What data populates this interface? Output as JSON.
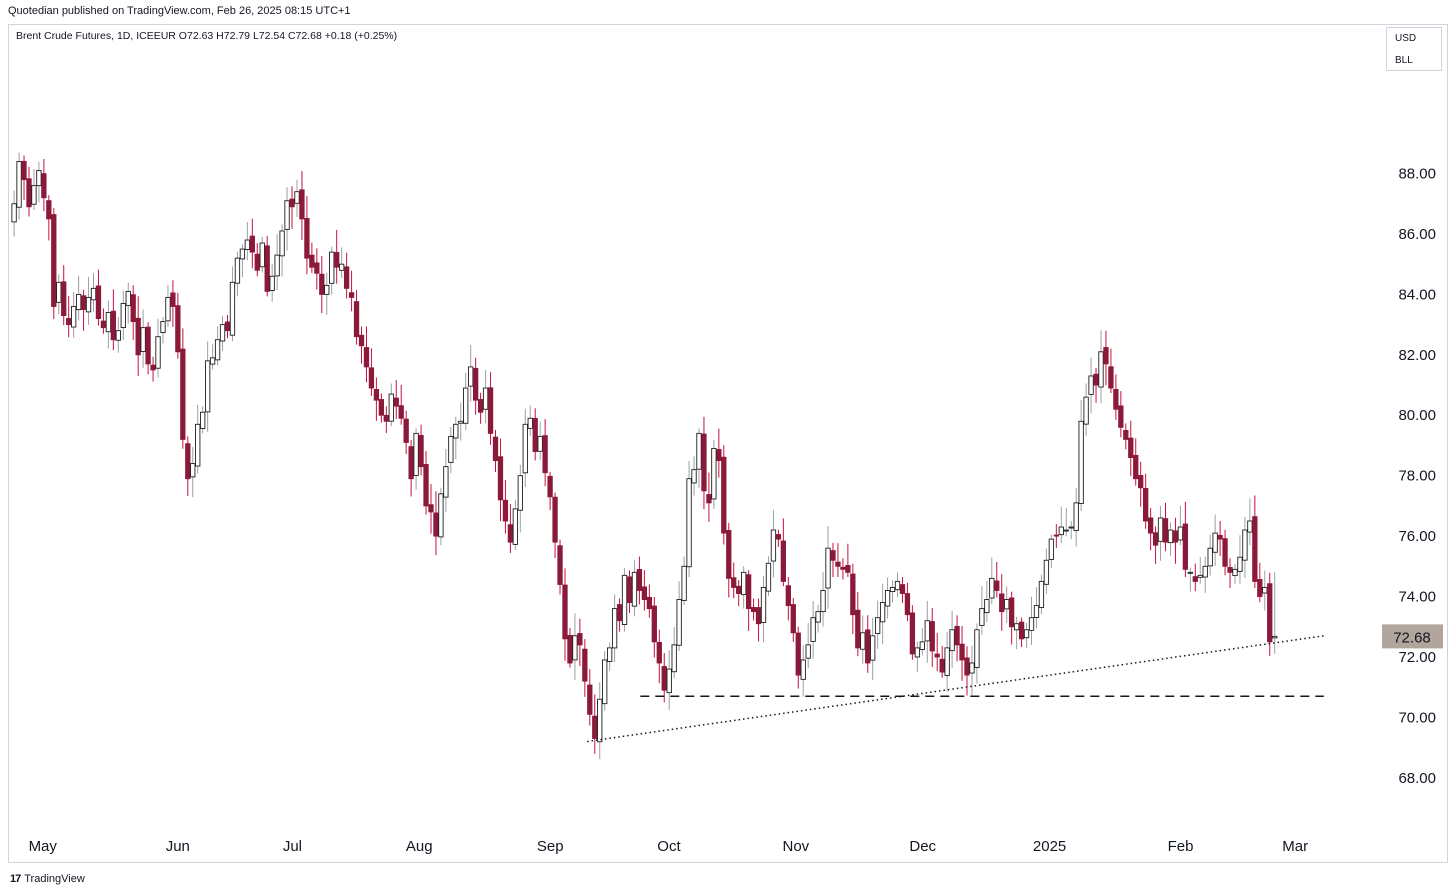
{
  "header": {
    "publisher_line": "Quotedian published on TradingView.com, Feb 26, 2025 08:15 UTC+1",
    "symbol_line": "Brent Crude Futures, 1D, ICEEUR  O72.63  H72.79  L72.54  C72.68  +0.18 (+0.25%)"
  },
  "unit_box": {
    "currency": "USD",
    "unit": "BLL"
  },
  "footer": {
    "brand": "TradingView",
    "logo_glyph": "17"
  },
  "colors": {
    "up": "#ffffff",
    "down": "#8b1a3a",
    "wick_down": "#c8103e",
    "wick_up": "#9aa0a6",
    "price_label_bg": "#b2a59b"
  },
  "chart_data": {
    "type": "candlestick",
    "title": "Brent Crude Futures",
    "interval": "1D",
    "exchange": "ICEEUR",
    "last": {
      "open": 72.63,
      "high": 72.79,
      "low": 72.54,
      "close": 72.68,
      "change": "+0.18 (+0.25%)"
    },
    "last_price_label": "72.68",
    "y_axis": {
      "ticks": [
        "88.00",
        "86.00",
        "84.00",
        "82.00",
        "80.00",
        "78.00",
        "76.00",
        "74.00",
        "72.00",
        "70.00",
        "68.00"
      ],
      "ylim": [
        67.0,
        90.6
      ],
      "position": "right"
    },
    "x_axis": {
      "labels": [
        "May",
        "Jun",
        "Jul",
        "Aug",
        "Sep",
        "Oct",
        "Nov",
        "Dec",
        "2025",
        "Feb",
        "Mar"
      ],
      "label_dates": [
        "2024-05-01",
        "2024-06-03",
        "2024-07-01",
        "2024-08-01",
        "2024-09-02",
        "2024-10-01",
        "2024-11-01",
        "2024-12-02",
        "2025-01-02",
        "2025-02-03",
        "2025-03-03"
      ],
      "xlim": [
        "2024-04-23",
        "2025-03-12"
      ]
    },
    "series": [
      {
        "name": "Brent Crude Futures",
        "closes": [
          87.0,
          88.4,
          87.8,
          86.9,
          87.6,
          88.1,
          87.2,
          86.5,
          83.6,
          84.4,
          83.3,
          83.0,
          83.6,
          84.0,
          83.5,
          83.9,
          84.2,
          83.2,
          82.9,
          83.4,
          82.5,
          82.8,
          83.7,
          84.1,
          83.1,
          82.0,
          82.9,
          81.7,
          81.5,
          82.6,
          83.1,
          83.9,
          83.6,
          82.1,
          79.2,
          77.9,
          78.4,
          79.7,
          80.1,
          81.8,
          81.9,
          82.5,
          83.0,
          82.8,
          84.4,
          85.2,
          85.5,
          85.8,
          85.4,
          84.8,
          85.7,
          84.1,
          84.6,
          85.3,
          86.1,
          87.1,
          86.9,
          87.4,
          86.5,
          85.2,
          84.9,
          84.7,
          84.0,
          84.3,
          85.4,
          84.9,
          85.0,
          84.2,
          83.9,
          82.6,
          82.3,
          81.6,
          80.9,
          80.5,
          80.0,
          79.8,
          80.7,
          80.3,
          79.9,
          79.1,
          77.9,
          79.4,
          78.3,
          77.0,
          76.8,
          76.0,
          77.4,
          78.3,
          79.3,
          79.7,
          79.8,
          80.9,
          81.6,
          80.5,
          80.1,
          80.9,
          79.4,
          78.5,
          77.2,
          76.5,
          75.8,
          76.9,
          78.0,
          79.7,
          79.9,
          78.8,
          79.3,
          78.1,
          77.3,
          75.8,
          74.4,
          72.6,
          71.8,
          72.7,
          72.4,
          71.2,
          70.1,
          69.3,
          70.6,
          71.9,
          72.3,
          73.6,
          73.2,
          74.7,
          73.8,
          74.8,
          74.2,
          73.9,
          73.6,
          72.5,
          71.8,
          70.9,
          71.6,
          72.4,
          73.9,
          75.0,
          77.9,
          78.2,
          79.4,
          77.5,
          77.1,
          78.9,
          78.5,
          76.1,
          74.6,
          74.3,
          74.1,
          74.8,
          73.6,
          73.5,
          73.1,
          74.3,
          75.1,
          76.2,
          75.9,
          74.5,
          73.7,
          72.8,
          71.4,
          71.9,
          72.4,
          73.3,
          73.5,
          74.2,
          75.6,
          75.2,
          75.0,
          74.9,
          74.8,
          73.4,
          72.3,
          72.8,
          71.8,
          72.7,
          73.3,
          73.8,
          74.2,
          74.3,
          74.5,
          74.1,
          73.4,
          72.1,
          72.3,
          72.5,
          73.2,
          72.2,
          72.0,
          71.5,
          72.3,
          72.9,
          72.4,
          71.9,
          71.4,
          71.8,
          72.9,
          73.6,
          73.9,
          74.6,
          74.2,
          73.5,
          73.9,
          73.0,
          73.1,
          72.6,
          72.9,
          73.3,
          73.7,
          74.5,
          75.2,
          75.9,
          76.0,
          76.3,
          76.2,
          76.3,
          77.1,
          79.8,
          80.6,
          81.3,
          81.0,
          82.1,
          81.7,
          80.9,
          80.2,
          79.6,
          79.2,
          78.6,
          77.9,
          77.6,
          76.5,
          76.1,
          75.7,
          76.6,
          75.8,
          76.2,
          75.8,
          76.3,
          74.9,
          74.8,
          74.5,
          74.7,
          75.0,
          75.6,
          76.1,
          75.9,
          75.0,
          74.8,
          74.9,
          75.3,
          76.2,
          76.5,
          74.5,
          74.0,
          74.3,
          72.5,
          72.68
        ]
      }
    ],
    "annotations": [
      {
        "type": "support-line-dashed",
        "price": 70.7,
        "from": "2024-09-24",
        "to": "2025-03-10"
      },
      {
        "type": "trendline-dotted",
        "from": "2024-09-11",
        "to": "2025-03-10",
        "from_price": 69.2,
        "to_price": 72.7
      }
    ],
    "grid": false
  }
}
